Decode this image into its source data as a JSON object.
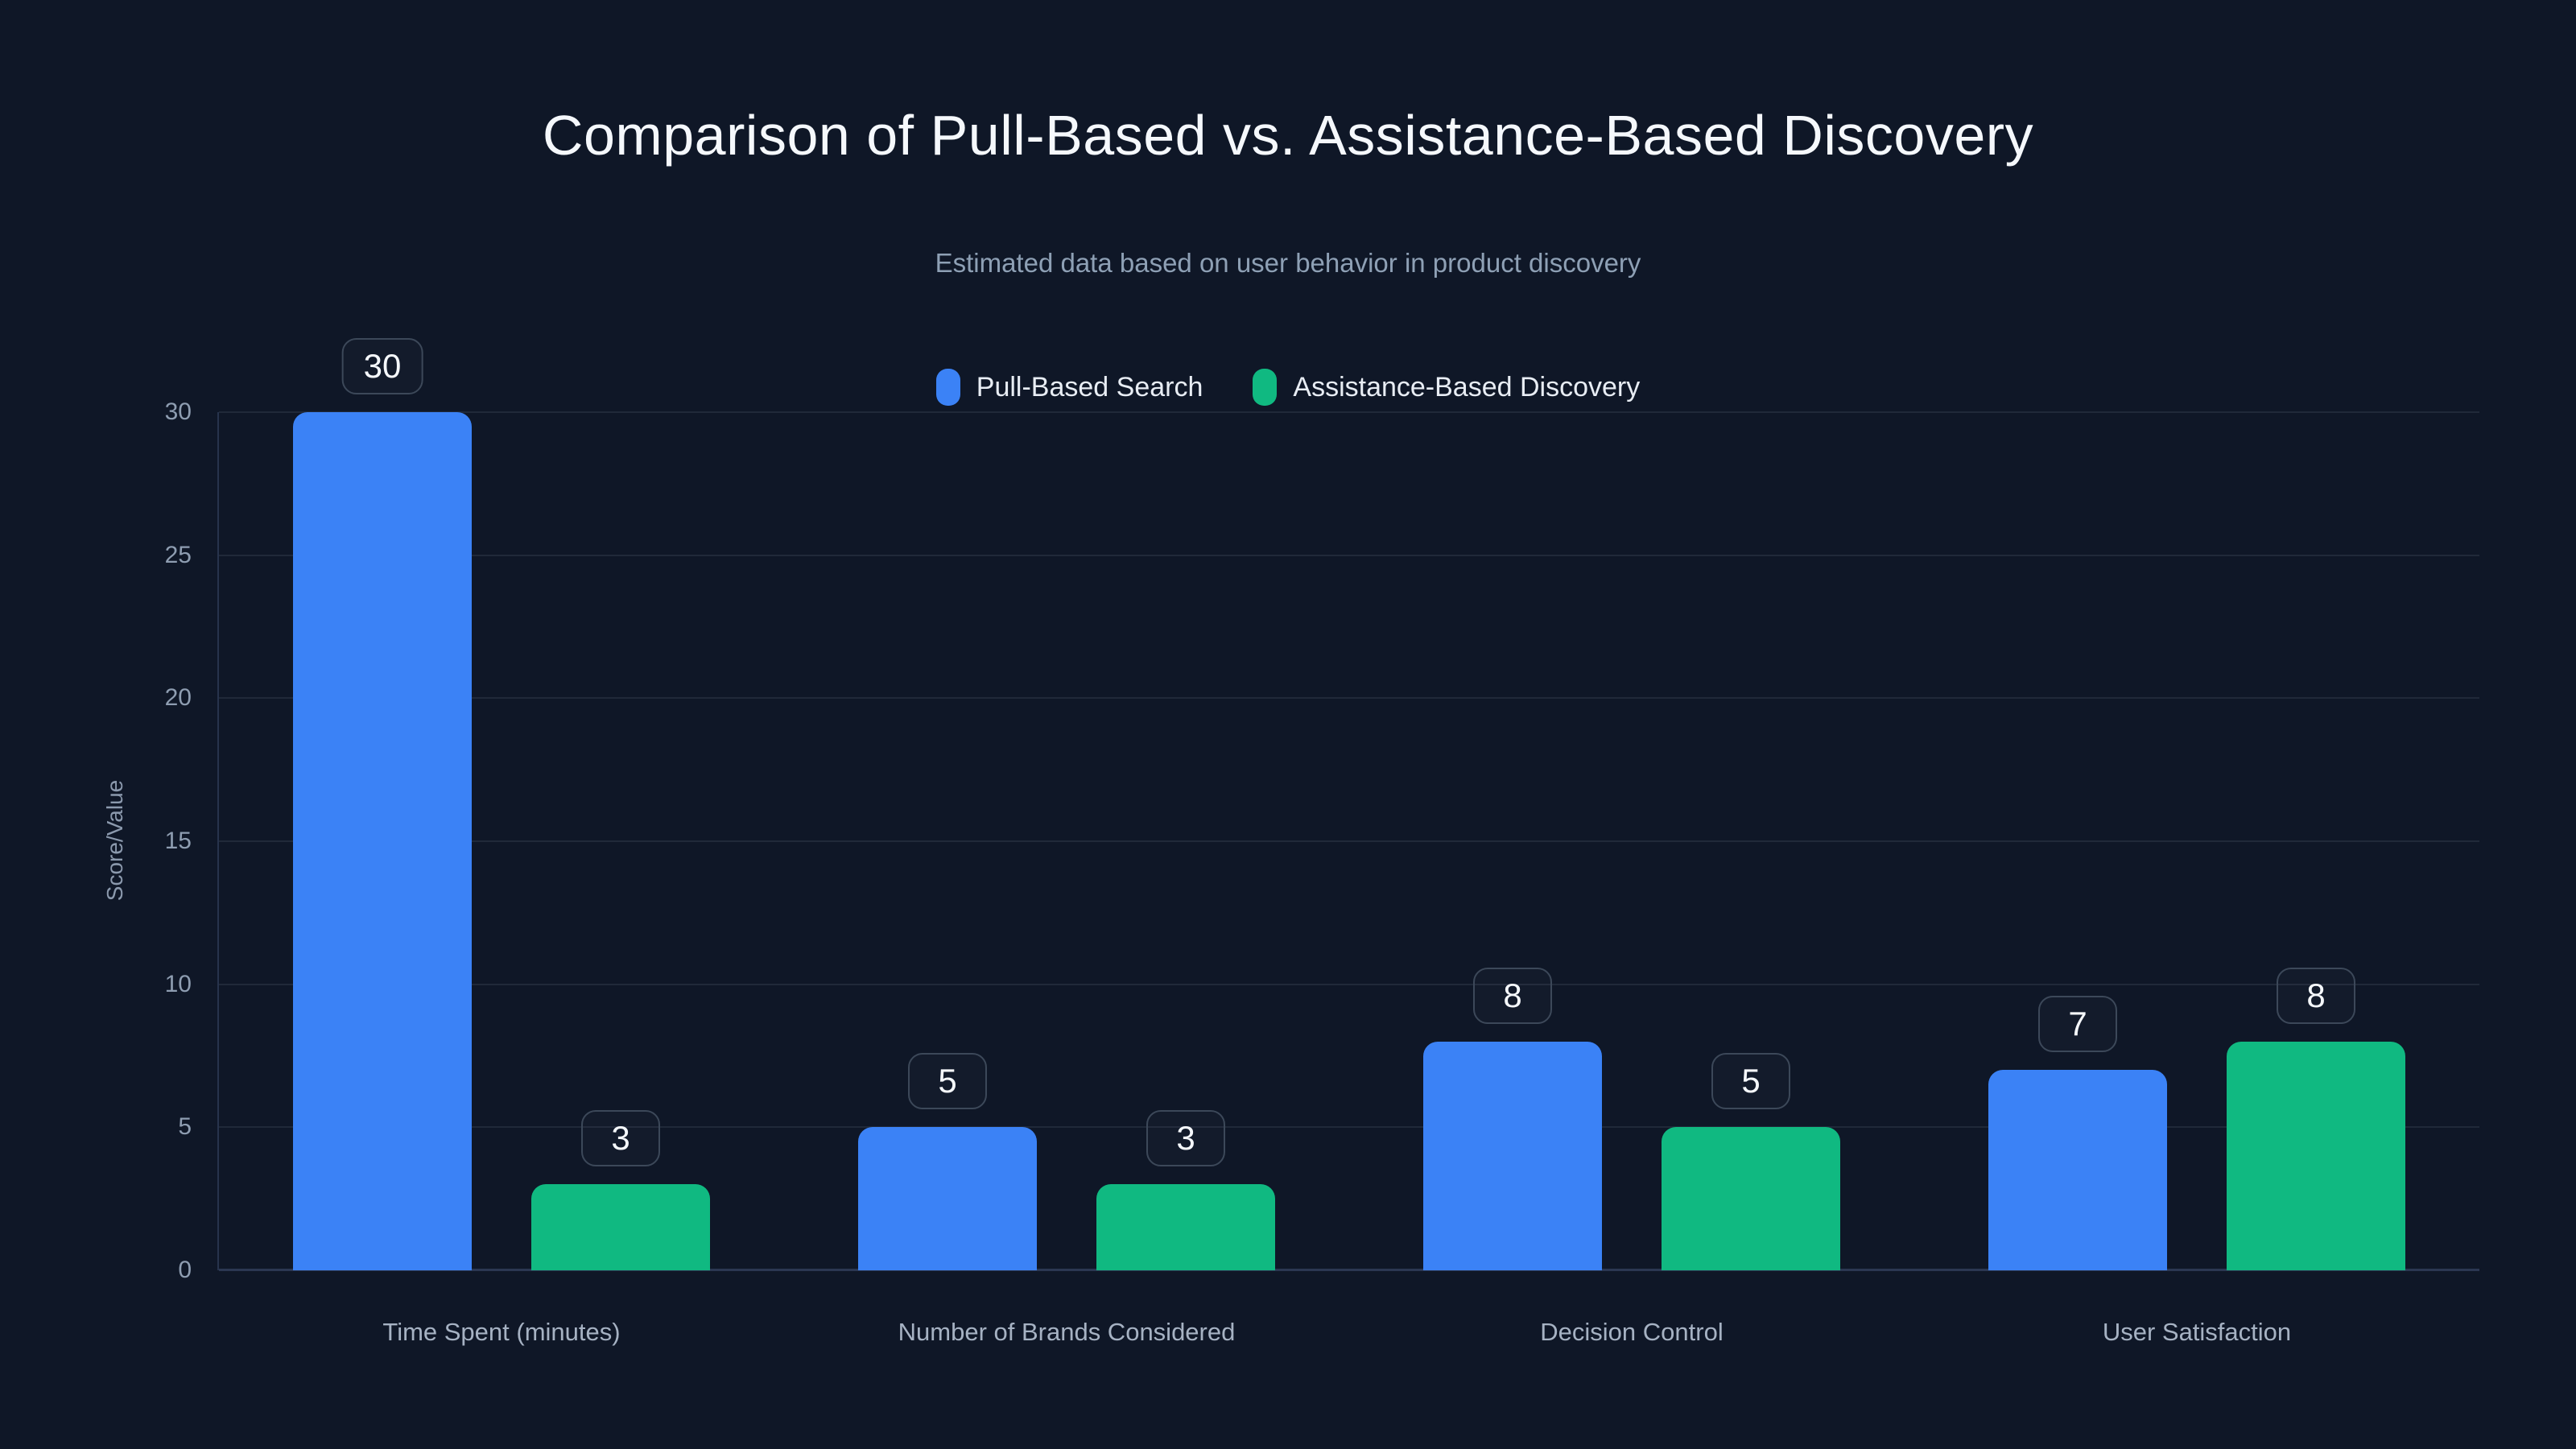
{
  "header": {
    "title": "Comparison of Pull-Based vs. Assistance-Based Discovery",
    "subtitle": "Estimated data based on user behavior in product discovery"
  },
  "legend": {
    "items": [
      {
        "label": "Pull-Based Search",
        "color": "#3b82f6"
      },
      {
        "label": "Assistance-Based Discovery",
        "color": "#10b981"
      }
    ]
  },
  "chart_data": {
    "type": "bar",
    "title": "Comparison of Pull-Based vs. Assistance-Based Discovery",
    "subtitle": "Estimated data based on user behavior in product discovery",
    "categories": [
      "Time Spent (minutes)",
      "Number of Brands Considered",
      "Decision Control",
      "User Satisfaction"
    ],
    "series": [
      {
        "name": "Pull-Based Search",
        "color": "#3b82f6",
        "values": [
          30,
          5,
          8,
          7
        ]
      },
      {
        "name": "Assistance-Based Discovery",
        "color": "#10b981",
        "values": [
          3,
          3,
          5,
          8
        ]
      }
    ],
    "ylabel": "Score/Value",
    "yticks": [
      0,
      5,
      10,
      15,
      20,
      25,
      30
    ],
    "ylim": [
      0,
      30
    ],
    "grid": true,
    "legend_position": "top",
    "value_labels": "rounded badge above each bar"
  },
  "colors": {
    "background": "#0f1727",
    "title_text": "#f5f8fc",
    "subtitle_text": "#8ea0b5",
    "tick_text": "#8e9db1",
    "category_text": "#a6b2c3",
    "legend_text": "#e8edf4",
    "axis_line": "#2b3752",
    "gridline": "rgba(148,163,184,0.13)",
    "badge_border": "#3c4859",
    "badge_text": "#f5f8fc"
  }
}
